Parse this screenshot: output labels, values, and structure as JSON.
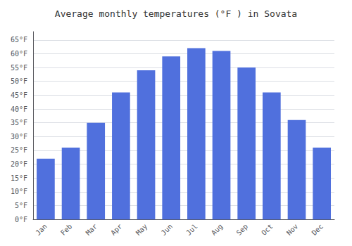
{
  "chart_data": {
    "type": "bar",
    "title": "Average monthly temperatures (°F ) in Sovata",
    "categories": [
      "Jan",
      "Feb",
      "Mar",
      "Apr",
      "May",
      "Jun",
      "Jul",
      "Aug",
      "Sep",
      "Oct",
      "Nov",
      "Dec"
    ],
    "values": [
      22,
      26,
      35,
      46,
      54,
      59,
      62,
      61,
      55,
      46,
      36,
      26
    ],
    "ylim": [
      0,
      68
    ],
    "yticks": [
      {
        "value": 0,
        "label": "0°F"
      },
      {
        "value": 5,
        "label": "5°F"
      },
      {
        "value": 10,
        "label": "10°F"
      },
      {
        "value": 15,
        "label": "15°F"
      },
      {
        "value": 20,
        "label": "20°F"
      },
      {
        "value": 25,
        "label": "25°F"
      },
      {
        "value": 30,
        "label": "30°F"
      },
      {
        "value": 35,
        "label": "35°F"
      },
      {
        "value": 40,
        "label": "40°F"
      },
      {
        "value": 45,
        "label": "45°F"
      },
      {
        "value": 50,
        "label": "50°F"
      },
      {
        "value": 55,
        "label": "55°F"
      },
      {
        "value": 60,
        "label": "60°F"
      },
      {
        "value": 65,
        "label": "65°F"
      }
    ],
    "grid": true
  }
}
